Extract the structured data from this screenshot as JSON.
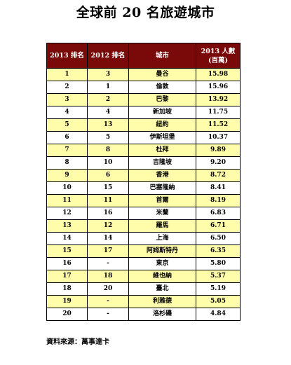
{
  "title": "全球前 20 名旅遊城市",
  "table": {
    "headers": {
      "rank_2013": "2013 排名",
      "rank_2012": "2012 排名",
      "city": "城市",
      "visitors_2013": "2013 人數",
      "visitors_unit": "(百萬)"
    },
    "rows": [
      {
        "rank_2013": "1",
        "rank_2012": "3",
        "city": "曼谷",
        "visitors": "15.98"
      },
      {
        "rank_2013": "2",
        "rank_2012": "1",
        "city": "倫敦",
        "visitors": "15.96"
      },
      {
        "rank_2013": "3",
        "rank_2012": "2",
        "city": "巴黎",
        "visitors": "13.92"
      },
      {
        "rank_2013": "4",
        "rank_2012": "4",
        "city": "新加坡",
        "visitors": "11.75"
      },
      {
        "rank_2013": "5",
        "rank_2012": "13",
        "city": "紐約",
        "visitors": "11.52"
      },
      {
        "rank_2013": "6",
        "rank_2012": "5",
        "city": "伊斯坦堡",
        "visitors": "10.37"
      },
      {
        "rank_2013": "7",
        "rank_2012": "8",
        "city": "杜拜",
        "visitors": "9.89"
      },
      {
        "rank_2013": "8",
        "rank_2012": "10",
        "city": "吉隆坡",
        "visitors": "9.20"
      },
      {
        "rank_2013": "9",
        "rank_2012": "6",
        "city": "香港",
        "visitors": "8.72"
      },
      {
        "rank_2013": "10",
        "rank_2012": "15",
        "city": "巴塞隆納",
        "visitors": "8.41"
      },
      {
        "rank_2013": "11",
        "rank_2012": "11",
        "city": "首爾",
        "visitors": "8.19"
      },
      {
        "rank_2013": "12",
        "rank_2012": "16",
        "city": "米蘭",
        "visitors": "6.83"
      },
      {
        "rank_2013": "13",
        "rank_2012": "12",
        "city": "羅馬",
        "visitors": "6.71"
      },
      {
        "rank_2013": "14",
        "rank_2012": "14",
        "city": "上海",
        "visitors": "6.50"
      },
      {
        "rank_2013": "15",
        "rank_2012": "17",
        "city": "阿姆斯特丹",
        "visitors": "6.35"
      },
      {
        "rank_2013": "16",
        "rank_2012": "-",
        "city": "東京",
        "visitors": "5.80"
      },
      {
        "rank_2013": "17",
        "rank_2012": "18",
        "city": "維也納",
        "visitors": "5.37"
      },
      {
        "rank_2013": "18",
        "rank_2012": "20",
        "city": "臺北",
        "visitors": "5.19"
      },
      {
        "rank_2013": "19",
        "rank_2012": "-",
        "city": "利雅德",
        "visitors": "5.05"
      },
      {
        "rank_2013": "20",
        "rank_2012": "-",
        "city": "洛杉磯",
        "visitors": "4.84"
      }
    ]
  },
  "source": "資料來源：萬事達卡",
  "colors": {
    "header_bg": "#7a0a0a",
    "header_text": "#ffffff",
    "highlight_row": "#fffcaa",
    "plain_row": "#ffffff",
    "border": "#000000"
  }
}
